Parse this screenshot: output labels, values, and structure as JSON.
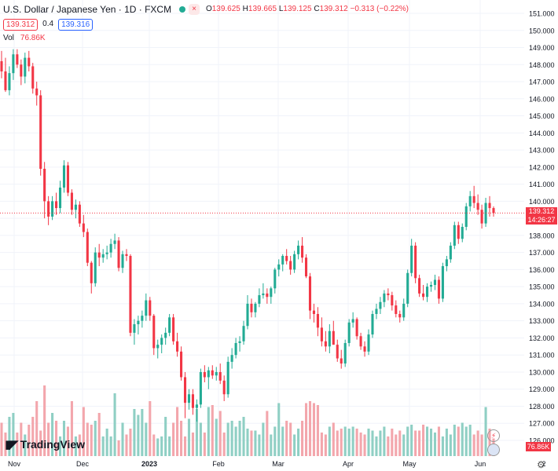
{
  "header": {
    "symbol_title": "U.S. Dollar / Japanese Yen · 1D · FXCM",
    "close_x_label": "×",
    "ohlc": {
      "o_label": "O",
      "o": "139.625",
      "h_label": "H",
      "h": "139.665",
      "l_label": "L",
      "l": "139.125",
      "c_label": "C",
      "c": "139.312",
      "change": "−0.313 (−0.22%)"
    },
    "sell_price": "139.312",
    "spread": "0.4",
    "buy_price": "139.316",
    "volume_label": "Vol",
    "volume_value": "76.86K"
  },
  "price_tag": {
    "price": "139.312",
    "countdown": "14:26:27"
  },
  "volume_tag": "76.86K",
  "logo_text": "TradingView",
  "colors": {
    "up": "#22ab94",
    "down": "#f23645",
    "up_vol": "#8fcfc4",
    "down_vol": "#f3a6ac",
    "grid": "#f0f3fa"
  },
  "chart_data": {
    "type": "candlestick",
    "y_ticks": [
      "151.000",
      "150.000",
      "149.000",
      "148.000",
      "147.000",
      "146.000",
      "145.000",
      "144.000",
      "143.000",
      "142.000",
      "141.000",
      "140.000",
      "139.000",
      "138.000",
      "137.000",
      "136.000",
      "135.000",
      "134.000",
      "133.000",
      "132.000",
      "131.000",
      "130.000",
      "129.000",
      "128.000",
      "127.000",
      "126.000"
    ],
    "ylim": [
      125.5,
      151.5
    ],
    "x_ticks": [
      "Nov",
      "Dec",
      "2023",
      "Feb",
      "Mar",
      "Apr",
      "May",
      "Jun",
      "2"
    ],
    "last_price": 139.312,
    "candles": [
      [
        148.2,
        148.8,
        147.2,
        147.6
      ],
      [
        147.6,
        148.4,
        146.4,
        146.5
      ],
      [
        146.5,
        147.9,
        146.2,
        147.5
      ],
      [
        147.5,
        148.9,
        147.1,
        148.6
      ],
      [
        148.6,
        148.9,
        147.8,
        148.0
      ],
      [
        148.0,
        148.3,
        146.8,
        147.3
      ],
      [
        147.3,
        148.7,
        146.9,
        148.4
      ],
      [
        148.4,
        148.8,
        147.6,
        147.9
      ],
      [
        147.9,
        148.1,
        146.3,
        146.6
      ],
      [
        146.6,
        147.0,
        145.6,
        146.2
      ],
      [
        146.2,
        146.5,
        141.5,
        141.9
      ],
      [
        141.9,
        142.3,
        139.0,
        140.0
      ],
      [
        140.0,
        140.3,
        138.6,
        139.1
      ],
      [
        139.1,
        140.3,
        138.9,
        140.0
      ],
      [
        140.0,
        140.5,
        139.2,
        139.6
      ],
      [
        139.6,
        141.2,
        139.3,
        140.8
      ],
      [
        140.8,
        142.4,
        140.5,
        142.1
      ],
      [
        142.1,
        142.3,
        140.3,
        140.5
      ],
      [
        140.5,
        140.7,
        139.2,
        139.5
      ],
      [
        139.5,
        140.1,
        139.0,
        139.8
      ],
      [
        139.8,
        140.0,
        138.5,
        138.7
      ],
      [
        138.7,
        139.2,
        137.9,
        138.2
      ],
      [
        138.2,
        138.4,
        136.2,
        136.4
      ],
      [
        136.4,
        136.5,
        134.6,
        135.2
      ],
      [
        135.2,
        137.3,
        135.0,
        137.0
      ],
      [
        137.0,
        137.5,
        136.2,
        136.7
      ],
      [
        136.7,
        137.2,
        136.4,
        136.9
      ],
      [
        136.9,
        137.4,
        136.6,
        137.0
      ],
      [
        137.0,
        137.8,
        136.7,
        137.5
      ],
      [
        137.5,
        138.1,
        137.2,
        137.7
      ],
      [
        137.7,
        137.9,
        135.9,
        136.1
      ],
      [
        136.1,
        137.1,
        135.8,
        136.9
      ],
      [
        136.9,
        137.2,
        136.5,
        136.8
      ],
      [
        136.8,
        136.9,
        132.1,
        132.3
      ],
      [
        132.3,
        133.1,
        131.6,
        132.8
      ],
      [
        132.8,
        133.3,
        132.2,
        133.0
      ],
      [
        133.0,
        133.6,
        132.6,
        133.3
      ],
      [
        133.3,
        134.6,
        133.0,
        134.2
      ],
      [
        134.2,
        134.4,
        133.0,
        133.3
      ],
      [
        133.3,
        133.4,
        131.0,
        131.4
      ],
      [
        131.4,
        131.9,
        130.8,
        131.6
      ],
      [
        131.6,
        132.2,
        131.1,
        132.0
      ],
      [
        132.0,
        132.6,
        131.6,
        132.3
      ],
      [
        132.3,
        133.4,
        132.1,
        133.2
      ],
      [
        133.2,
        133.4,
        131.6,
        131.8
      ],
      [
        131.8,
        132.3,
        130.9,
        131.2
      ],
      [
        131.2,
        131.5,
        129.5,
        129.7
      ],
      [
        129.7,
        130.0,
        127.3,
        128.2
      ],
      [
        128.2,
        129.0,
        127.8,
        128.7
      ],
      [
        128.7,
        129.0,
        127.5,
        127.9
      ],
      [
        127.9,
        128.4,
        127.1,
        128.1
      ],
      [
        128.1,
        130.2,
        127.9,
        130.0
      ],
      [
        130.0,
        130.4,
        129.4,
        129.7
      ],
      [
        129.7,
        130.3,
        129.0,
        130.1
      ],
      [
        130.1,
        130.4,
        129.6,
        129.8
      ],
      [
        129.8,
        130.3,
        129.5,
        130.0
      ],
      [
        130.0,
        130.5,
        129.3,
        129.5
      ],
      [
        129.5,
        129.8,
        128.3,
        128.7
      ],
      [
        128.7,
        130.9,
        128.5,
        130.6
      ],
      [
        130.6,
        131.4,
        130.2,
        131.0
      ],
      [
        131.0,
        132.0,
        130.8,
        131.7
      ],
      [
        131.7,
        132.1,
        131.2,
        131.8
      ],
      [
        131.8,
        133.0,
        131.6,
        132.7
      ],
      [
        132.7,
        134.5,
        132.5,
        134.0
      ],
      [
        134.0,
        134.3,
        133.2,
        133.5
      ],
      [
        133.5,
        134.1,
        133.2,
        134.0
      ],
      [
        134.0,
        134.9,
        133.8,
        134.5
      ],
      [
        134.5,
        135.2,
        134.3,
        134.6
      ],
      [
        134.6,
        134.9,
        134.0,
        134.4
      ],
      [
        134.4,
        135.0,
        134.0,
        134.9
      ],
      [
        134.9,
        136.1,
        134.6,
        136.0
      ],
      [
        136.0,
        136.6,
        135.6,
        136.3
      ],
      [
        136.3,
        136.9,
        135.9,
        136.8
      ],
      [
        136.8,
        137.2,
        136.3,
        136.5
      ],
      [
        136.5,
        136.8,
        135.7,
        136.0
      ],
      [
        136.0,
        137.1,
        135.8,
        136.9
      ],
      [
        136.9,
        137.7,
        136.6,
        137.4
      ],
      [
        137.4,
        137.9,
        136.4,
        136.7
      ],
      [
        136.7,
        136.9,
        135.5,
        135.6
      ],
      [
        135.6,
        135.8,
        133.1,
        133.6
      ],
      [
        133.6,
        134.0,
        132.9,
        133.4
      ],
      [
        133.4,
        133.8,
        132.1,
        132.6
      ],
      [
        132.6,
        133.2,
        131.5,
        131.8
      ],
      [
        131.8,
        132.4,
        131.2,
        131.5
      ],
      [
        131.5,
        132.8,
        131.1,
        132.4
      ],
      [
        132.4,
        133.0,
        131.6,
        131.6
      ],
      [
        131.6,
        131.9,
        130.6,
        130.8
      ],
      [
        130.8,
        131.3,
        130.2,
        130.5
      ],
      [
        130.5,
        131.9,
        130.3,
        131.7
      ],
      [
        131.7,
        133.1,
        131.5,
        132.9
      ],
      [
        132.9,
        133.5,
        132.6,
        133.1
      ],
      [
        133.1,
        133.2,
        131.9,
        132.1
      ],
      [
        132.1,
        132.3,
        131.3,
        131.5
      ],
      [
        131.5,
        131.8,
        130.9,
        131.2
      ],
      [
        131.2,
        132.5,
        131.0,
        132.2
      ],
      [
        132.2,
        133.6,
        132.0,
        133.4
      ],
      [
        133.4,
        134.0,
        133.1,
        133.7
      ],
      [
        133.7,
        134.4,
        133.4,
        134.1
      ],
      [
        134.1,
        134.8,
        133.8,
        134.6
      ],
      [
        134.6,
        134.9,
        134.2,
        134.5
      ],
      [
        134.5,
        134.7,
        133.6,
        133.9
      ],
      [
        133.9,
        134.2,
        133.2,
        133.4
      ],
      [
        133.4,
        133.6,
        132.9,
        133.2
      ],
      [
        133.2,
        134.3,
        133.0,
        134.0
      ],
      [
        134.0,
        136.0,
        133.8,
        135.8
      ],
      [
        135.8,
        137.8,
        135.6,
        137.4
      ],
      [
        137.4,
        137.6,
        135.2,
        135.5
      ],
      [
        135.5,
        135.7,
        134.4,
        134.6
      ],
      [
        134.6,
        135.1,
        134.2,
        134.4
      ],
      [
        134.4,
        135.2,
        134.1,
        135.0
      ],
      [
        135.0,
        135.3,
        134.7,
        135.1
      ],
      [
        135.1,
        135.7,
        134.8,
        135.4
      ],
      [
        135.4,
        135.6,
        134.0,
        134.3
      ],
      [
        134.3,
        136.4,
        134.1,
        136.2
      ],
      [
        136.2,
        136.8,
        135.9,
        136.6
      ],
      [
        136.6,
        137.6,
        136.4,
        137.4
      ],
      [
        137.4,
        138.8,
        137.2,
        138.6
      ],
      [
        138.6,
        138.8,
        137.5,
        137.8
      ],
      [
        137.8,
        138.7,
        137.6,
        138.5
      ],
      [
        138.5,
        139.9,
        138.3,
        139.7
      ],
      [
        139.7,
        140.6,
        139.4,
        140.3
      ],
      [
        140.3,
        140.9,
        139.6,
        139.9
      ],
      [
        139.9,
        140.4,
        139.2,
        139.5
      ],
      [
        139.5,
        139.8,
        138.4,
        138.7
      ],
      [
        138.7,
        140.2,
        138.5,
        139.9
      ],
      [
        139.9,
        140.3,
        139.1,
        139.6
      ],
      [
        139.6,
        139.7,
        139.1,
        139.312
      ]
    ],
    "volumes": [
      17,
      12,
      20,
      22,
      12,
      17,
      11,
      16,
      20,
      28,
      13,
      36,
      17,
      22,
      18,
      10,
      18,
      15,
      28,
      10,
      11,
      25,
      17,
      16,
      18,
      22,
      10,
      14,
      10,
      32,
      8,
      17,
      11,
      14,
      24,
      21,
      24,
      17,
      28,
      11,
      9,
      10,
      20,
      10,
      17,
      25,
      18,
      10,
      19,
      12,
      24,
      17,
      12,
      25,
      26,
      19,
      23,
      12,
      17,
      18,
      15,
      18,
      20,
      14,
      13,
      13,
      11,
      17,
      23,
      11,
      15,
      27,
      15,
      18,
      17,
      11,
      14,
      18,
      27,
      28,
      27,
      26,
      12,
      11,
      15,
      17,
      13,
      14,
      15,
      14,
      15,
      14,
      12,
      11,
      14,
      13,
      10,
      13,
      15,
      10,
      14,
      11,
      13,
      11,
      15,
      16,
      13,
      13,
      16,
      15,
      14,
      12,
      15,
      10,
      14,
      11,
      16,
      15,
      17,
      15,
      16,
      11,
      13,
      11,
      25,
      14,
      9
    ]
  }
}
